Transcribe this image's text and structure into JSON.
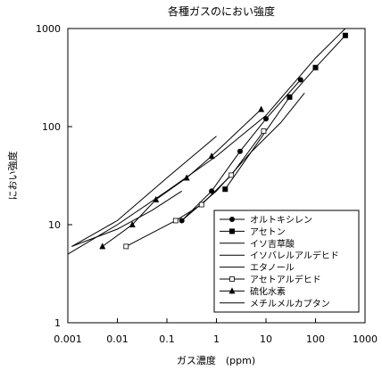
{
  "chart_data": {
    "type": "line",
    "title": "各種ガスのにおい強度",
    "xlabel": "ガス濃度　(ppm)",
    "ylabel": "におい強度",
    "x_scale": "log",
    "y_scale": "log",
    "xlim": [
      0.001,
      1000
    ],
    "ylim": [
      1,
      1000
    ],
    "x_ticks": [
      "0.001",
      "0.01",
      "0.1",
      "1",
      "10",
      "100",
      "1000"
    ],
    "y_ticks": [
      "1",
      "10",
      "100",
      "1000"
    ],
    "grid": false,
    "legend_position": "bottom-right",
    "series": [
      {
        "name": "オルトキシレン",
        "marker": "circle",
        "points": [
          [
            0.2,
            11
          ],
          [
            0.8,
            22
          ],
          [
            3,
            56
          ],
          [
            10,
            120
          ],
          [
            50,
            300
          ]
        ]
      },
      {
        "name": "アセトン",
        "marker": "square",
        "points": [
          [
            1.5,
            23
          ],
          [
            30,
            200
          ],
          [
            100,
            400
          ],
          [
            400,
            850
          ]
        ]
      },
      {
        "name": "イソ吉草酸",
        "marker": "none",
        "points": [
          [
            0.0012,
            6
          ],
          [
            0.01,
            9
          ],
          [
            0.05,
            14
          ],
          [
            0.2,
            22
          ]
        ]
      },
      {
        "name": "イソバレルアルデヒド",
        "marker": "none",
        "points": [
          [
            0.001,
            5
          ],
          [
            0.01,
            10
          ],
          [
            0.1,
            22
          ],
          [
            1,
            50
          ],
          [
            10,
            130
          ],
          [
            100,
            500
          ],
          [
            400,
            1000
          ]
        ]
      },
      {
        "name": "エタノール",
        "marker": "none",
        "points": [
          [
            0.2,
            11
          ],
          [
            1,
            22
          ],
          [
            5,
            55
          ],
          [
            20,
            110
          ],
          [
            60,
            220
          ]
        ]
      },
      {
        "name": "アセトアルデヒド",
        "marker": "hollow-square",
        "points": [
          [
            0.015,
            6
          ],
          [
            0.15,
            11
          ],
          [
            0.5,
            16
          ],
          [
            2,
            32
          ],
          [
            9,
            90
          ]
        ]
      },
      {
        "name": "硫化水素",
        "marker": "triangle",
        "points": [
          [
            0.005,
            6
          ],
          [
            0.02,
            10
          ],
          [
            0.06,
            18
          ],
          [
            0.25,
            30
          ],
          [
            0.8,
            50
          ],
          [
            8,
            150
          ]
        ]
      },
      {
        "name": "メチルメルカプタン",
        "marker": "none",
        "points": [
          [
            0.0012,
            6
          ],
          [
            0.01,
            11
          ],
          [
            0.1,
            30
          ],
          [
            1,
            80
          ]
        ]
      }
    ]
  }
}
